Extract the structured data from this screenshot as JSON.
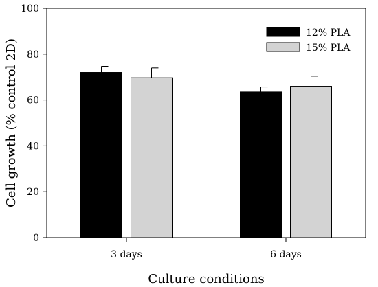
{
  "chart_data": {
    "type": "bar",
    "categories": [
      "3 days",
      "6 days"
    ],
    "series": [
      {
        "name": "12% PLA",
        "values": [
          72,
          63.5
        ],
        "errors": [
          2.7,
          2.2
        ],
        "color": "#000000"
      },
      {
        "name": "15% PLA",
        "values": [
          69.7,
          66
        ],
        "errors": [
          4.3,
          4.4
        ],
        "color": "#d3d3d3"
      }
    ],
    "xlabel": "Culture conditions",
    "ylabel": "Cell growth (% control 2D)",
    "ylim": [
      0,
      100
    ],
    "yticks": [
      0,
      20,
      40,
      60,
      80,
      100
    ],
    "grid": false,
    "legend_position": "top-right"
  }
}
